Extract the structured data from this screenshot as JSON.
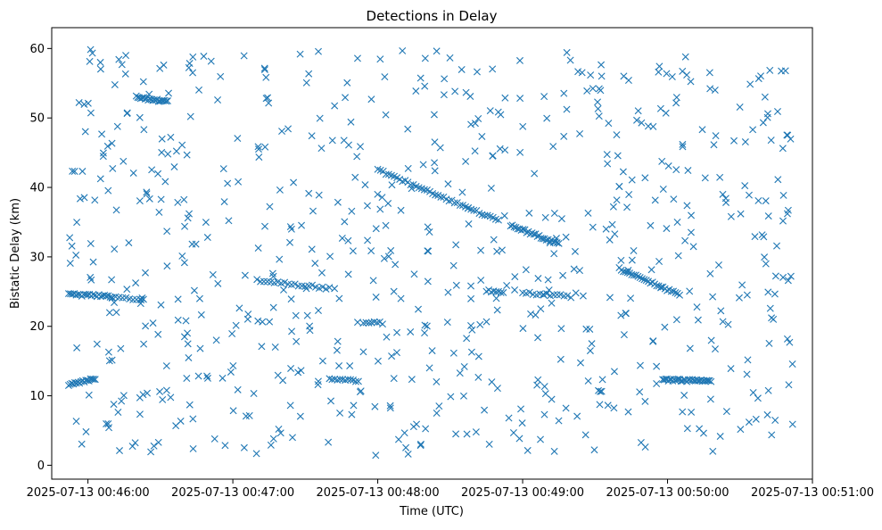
{
  "chart_data": {
    "type": "scatter",
    "title": "Detections in Delay",
    "xlabel": "Time (UTC)",
    "ylabel": "Bistatic Delay (km)",
    "x_ticks": [
      "2025-07-13 00:46:00",
      "2025-07-13 00:47:00",
      "2025-07-13 00:48:00",
      "2025-07-13 00:49:00",
      "2025-07-13 00:50:00",
      "2025-07-13 00:51:00"
    ],
    "y_ticks": [
      "0",
      "10",
      "20",
      "30",
      "40",
      "50",
      "60"
    ],
    "xlim": [
      "2025-07-13 00:45:45",
      "2025-07-13 00:51:00"
    ],
    "ylim": [
      -2,
      63
    ],
    "grid": false,
    "marker": "x",
    "color": "#1f77b4",
    "series": [
      {
        "name": "",
        "tracks": [
          {
            "x_start": "2025-07-13 00:45:52",
            "x_end": "2025-07-13 00:46:10",
            "y_start": 24.6,
            "y_end": 24.3,
            "count": 24
          },
          {
            "x_start": "2025-07-13 00:46:10",
            "x_end": "2025-07-13 00:46:23",
            "y_start": 24.2,
            "y_end": 23.9,
            "count": 10
          },
          {
            "x_start": "2025-07-13 00:45:52",
            "x_end": "2025-07-13 00:46:03",
            "y_start": 11.6,
            "y_end": 12.5,
            "count": 18
          },
          {
            "x_start": "2025-07-13 00:46:20",
            "x_end": "2025-07-13 00:46:33",
            "y_start": 53.0,
            "y_end": 52.3,
            "count": 22
          },
          {
            "x_start": "2025-07-13 00:47:10",
            "x_end": "2025-07-13 00:47:40",
            "y_start": 26.6,
            "y_end": 25.5,
            "count": 22
          },
          {
            "x_start": "2025-07-13 00:47:40",
            "x_end": "2025-07-13 00:47:52",
            "y_start": 12.3,
            "y_end": 12.2,
            "count": 12
          },
          {
            "x_start": "2025-07-13 00:47:54",
            "x_end": "2025-07-13 00:48:02",
            "y_start": 20.6,
            "y_end": 20.5,
            "count": 8
          },
          {
            "x_start": "2025-07-13 00:48:00",
            "x_end": "2025-07-13 00:48:50",
            "y_start": 42.5,
            "y_end": 35.2,
            "count": 45
          },
          {
            "x_start": "2025-07-13 00:48:55",
            "x_end": "2025-07-13 00:49:15",
            "y_start": 34.5,
            "y_end": 31.9,
            "count": 28
          },
          {
            "x_start": "2025-07-13 00:48:45",
            "x_end": "2025-07-13 00:48:52",
            "y_start": 25.1,
            "y_end": 25.0,
            "count": 8
          },
          {
            "x_start": "2025-07-13 00:49:00",
            "x_end": "2025-07-13 00:49:20",
            "y_start": 24.8,
            "y_end": 24.3,
            "count": 15
          },
          {
            "x_start": "2025-07-13 00:49:40",
            "x_end": "2025-07-13 00:50:05",
            "y_start": 28.3,
            "y_end": 24.5,
            "count": 30
          },
          {
            "x_start": "2025-07-13 00:49:58",
            "x_end": "2025-07-13 00:50:18",
            "y_start": 12.3,
            "y_end": 12.1,
            "count": 35
          }
        ],
        "scattered_points": {
          "count": 700,
          "x_range": [
            "2025-07-13 00:45:52",
            "2025-07-13 00:50:52"
          ],
          "y_range": [
            1,
            60
          ]
        }
      }
    ]
  }
}
